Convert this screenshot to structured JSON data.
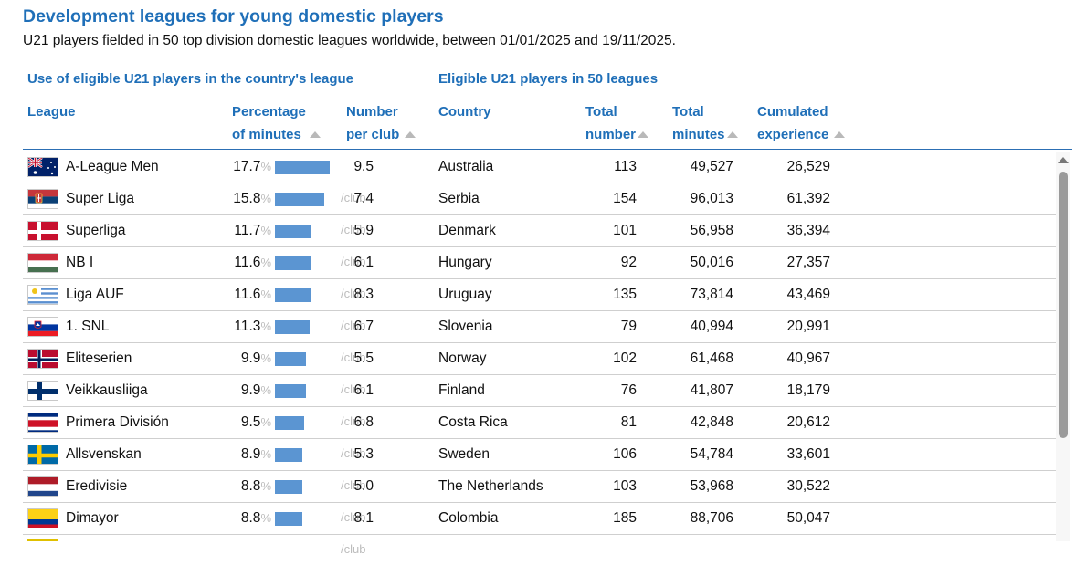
{
  "title": "Development leagues for young domestic players",
  "subtitle": "U21 players fielded in 50 top division domestic leagues worldwide, between 01/01/2025 and 19/11/2025.",
  "groups": {
    "left": "Use of eligible U21 players in the country's league",
    "right": "Eligible U21 players in 50 leagues"
  },
  "columns": {
    "league": "League",
    "pct_1": "Percentage",
    "pct_2": "of minutes",
    "num_1": "Number",
    "num_2": "per club",
    "country": "Country",
    "total_1": "Total",
    "total_2": "number",
    "minutes_1": "Total",
    "minutes_2": "minutes",
    "exp_1": "Cumulated",
    "exp_2": "experience"
  },
  "units": {
    "pct": "%",
    "club": "/club"
  },
  "rows": [
    {
      "league": "A-League Men",
      "flag": "australia",
      "pct": "17.7",
      "per_club": "9.5",
      "country": "Australia",
      "total": "113",
      "minutes": "49,527",
      "experience": "26,529"
    },
    {
      "league": "Super Liga",
      "flag": "serbia",
      "pct": "15.8",
      "per_club": "7.4",
      "country": "Serbia",
      "total": "154",
      "minutes": "96,013",
      "experience": "61,392"
    },
    {
      "league": "Superliga",
      "flag": "denmark",
      "pct": "11.7",
      "per_club": "5.9",
      "country": "Denmark",
      "total": "101",
      "minutes": "56,958",
      "experience": "36,394"
    },
    {
      "league": "NB I",
      "flag": "hungary",
      "pct": "11.6",
      "per_club": "6.1",
      "country": "Hungary",
      "total": "92",
      "minutes": "50,016",
      "experience": "27,357"
    },
    {
      "league": "Liga AUF",
      "flag": "uruguay",
      "pct": "11.6",
      "per_club": "8.3",
      "country": "Uruguay",
      "total": "135",
      "minutes": "73,814",
      "experience": "43,469"
    },
    {
      "league": "1. SNL",
      "flag": "slovenia",
      "pct": "11.3",
      "per_club": "6.7",
      "country": "Slovenia",
      "total": "79",
      "minutes": "40,994",
      "experience": "20,991"
    },
    {
      "league": "Eliteserien",
      "flag": "norway",
      "pct": "9.9",
      "per_club": "5.5",
      "country": "Norway",
      "total": "102",
      "minutes": "61,468",
      "experience": "40,967"
    },
    {
      "league": "Veikkausliiga",
      "flag": "finland",
      "pct": "9.9",
      "per_club": "6.1",
      "country": "Finland",
      "total": "76",
      "minutes": "41,807",
      "experience": "18,179"
    },
    {
      "league": "Primera División",
      "flag": "costa-rica",
      "pct": "9.5",
      "per_club": "6.8",
      "country": "Costa Rica",
      "total": "81",
      "minutes": "42,848",
      "experience": "20,612"
    },
    {
      "league": "Allsvenskan",
      "flag": "sweden",
      "pct": "8.9",
      "per_club": "5.3",
      "country": "Sweden",
      "total": "106",
      "minutes": "54,784",
      "experience": "33,601"
    },
    {
      "league": "Eredivisie",
      "flag": "netherlands",
      "pct": "8.8",
      "per_club": "5.0",
      "country": "The Netherlands",
      "total": "103",
      "minutes": "53,968",
      "experience": "30,522"
    },
    {
      "league": "Dimayor",
      "flag": "colombia",
      "pct": "8.8",
      "per_club": "8.1",
      "country": "Colombia",
      "total": "185",
      "minutes": "88,706",
      "experience": "50,047"
    }
  ],
  "colors": {
    "accent": "#1f6fb8",
    "bar": "#5b95d2"
  }
}
